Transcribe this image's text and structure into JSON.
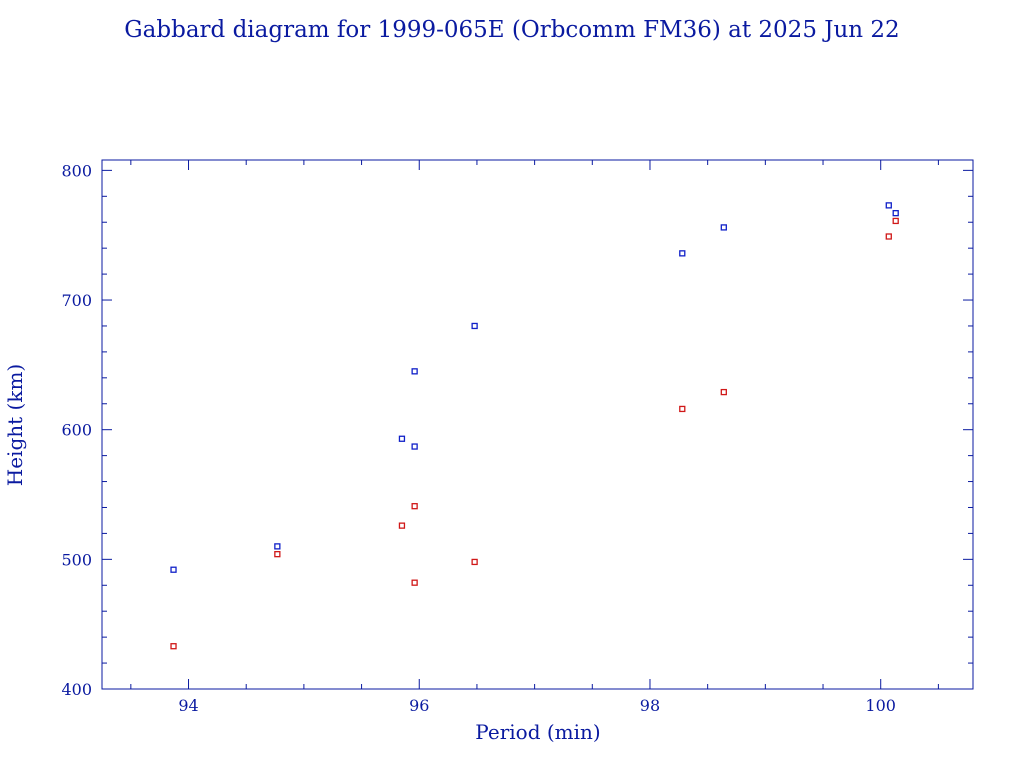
{
  "chart_data": {
    "type": "scatter",
    "title": "Gabbard diagram for 1999-065E (Orbcomm FM36) at 2025 Jun 22",
    "xlabel": "Period (min)",
    "ylabel": "Height (km)",
    "xlim": [
      93.25,
      100.8
    ],
    "ylim": [
      400,
      808
    ],
    "x_ticks": [
      94,
      96,
      98,
      100
    ],
    "y_ticks": [
      400,
      500,
      600,
      700,
      800
    ],
    "x_tick_labels": [
      "94",
      "96",
      "98",
      "100"
    ],
    "y_tick_labels": [
      "400",
      "500",
      "600",
      "700",
      "800"
    ],
    "grid": false,
    "legend": "none",
    "series": [
      {
        "color": "#1020c8",
        "points": [
          {
            "x": 93.87,
            "y": 492
          },
          {
            "x": 94.77,
            "y": 510
          },
          {
            "x": 95.85,
            "y": 593
          },
          {
            "x": 95.96,
            "y": 645
          },
          {
            "x": 95.96,
            "y": 587
          },
          {
            "x": 96.48,
            "y": 680
          },
          {
            "x": 98.28,
            "y": 736
          },
          {
            "x": 98.64,
            "y": 756
          },
          {
            "x": 100.07,
            "y": 773
          },
          {
            "x": 100.13,
            "y": 767
          }
        ]
      },
      {
        "color": "#d01818",
        "points": [
          {
            "x": 93.87,
            "y": 433
          },
          {
            "x": 94.77,
            "y": 504
          },
          {
            "x": 95.85,
            "y": 526
          },
          {
            "x": 95.96,
            "y": 541
          },
          {
            "x": 95.96,
            "y": 482
          },
          {
            "x": 96.48,
            "y": 498
          },
          {
            "x": 98.28,
            "y": 616
          },
          {
            "x": 98.64,
            "y": 629
          },
          {
            "x": 100.07,
            "y": 749
          },
          {
            "x": 100.13,
            "y": 761
          }
        ]
      }
    ]
  }
}
